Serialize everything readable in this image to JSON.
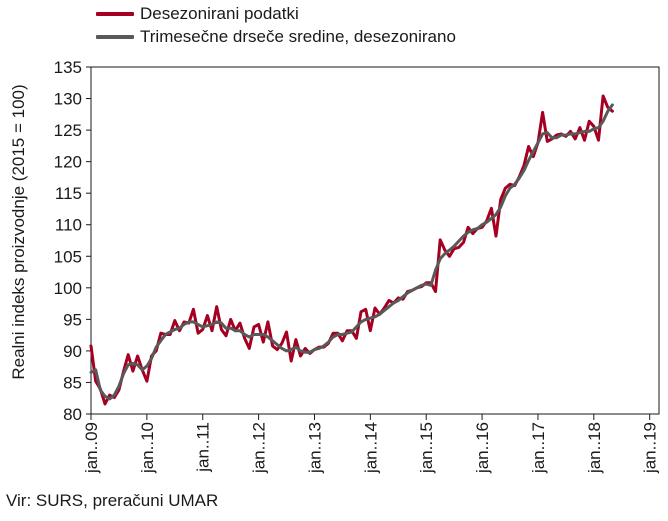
{
  "chart_data": {
    "type": "line",
    "title": "",
    "xlabel": "",
    "ylabel": "Realni indeks proizvodnje (2015 = 100)",
    "ylim": [
      80,
      135
    ],
    "yticks": [
      80,
      85,
      90,
      95,
      100,
      105,
      110,
      115,
      120,
      125,
      130,
      135
    ],
    "xlim": [
      "2009-01",
      "2019-03"
    ],
    "x_tick_labels": [
      "jan..09",
      "jan..10",
      "jan..11",
      "jan..12",
      "jan..13",
      "jan..14",
      "jan..15",
      "jan..16",
      "jan..17",
      "jan..18",
      "jan..19"
    ],
    "grid": false,
    "legend_position": "top-left",
    "series": [
      {
        "name": "Desezonirani podatki",
        "color": "#a50021",
        "x_start": "2009-01",
        "frequency": "monthly",
        "values": [
          90.8,
          85.2,
          84.0,
          81.6,
          83.0,
          82.6,
          83.8,
          86.8,
          89.4,
          86.8,
          89.2,
          87.0,
          85.2,
          89.2,
          90.0,
          92.8,
          92.6,
          92.6,
          94.8,
          93.2,
          94.6,
          94.4,
          96.6,
          92.8,
          93.4,
          95.6,
          93.2,
          97.0,
          93.4,
          92.4,
          95.0,
          93.2,
          94.4,
          92.0,
          90.4,
          93.8,
          94.2,
          91.4,
          94.6,
          90.8,
          90.2,
          91.2,
          93.0,
          88.4,
          91.8,
          89.2,
          90.4,
          89.6,
          90.2,
          90.6,
          90.6,
          91.2,
          92.8,
          92.8,
          91.6,
          93.2,
          93.2,
          92.0,
          96.2,
          96.6,
          93.2,
          96.8,
          95.8,
          96.8,
          98.0,
          97.6,
          98.4,
          98.2,
          99.4,
          99.6,
          100.0,
          100.2,
          100.8,
          100.8,
          99.4,
          107.6,
          106.0,
          105.0,
          106.2,
          106.4,
          107.2,
          109.6,
          108.6,
          109.4,
          109.6,
          110.6,
          112.6,
          108.2,
          114.0,
          115.8,
          116.4,
          116.2,
          117.6,
          119.4,
          122.4,
          120.8,
          123.0,
          127.8,
          123.2,
          123.6,
          124.2,
          124.4,
          124.0,
          124.8,
          123.6,
          125.4,
          123.4,
          126.4,
          125.6,
          123.4,
          130.4,
          128.6,
          128.0
        ]
      },
      {
        "name": "Trimesečne drseče sredine, desezonirano",
        "color": "#595959",
        "x_start": "2009-01",
        "frequency": "monthly",
        "values": [
          86.6,
          87.0,
          83.8,
          82.8,
          82.4,
          83.0,
          84.4,
          86.4,
          87.8,
          88.0,
          87.8,
          87.0,
          87.6,
          88.8,
          90.6,
          91.6,
          92.6,
          93.0,
          93.4,
          93.6,
          94.2,
          94.6,
          94.6,
          94.2,
          93.8,
          94.0,
          94.2,
          94.6,
          94.4,
          93.6,
          93.6,
          93.2,
          93.2,
          92.6,
          92.2,
          92.6,
          92.6,
          92.6,
          92.2,
          91.6,
          91.0,
          90.4,
          90.0,
          90.2,
          90.6,
          90.0,
          89.8,
          89.8,
          90.2,
          90.4,
          90.8,
          91.4,
          92.2,
          92.6,
          92.6,
          92.8,
          93.0,
          93.8,
          94.6,
          95.0,
          95.2,
          95.4,
          95.8,
          96.4,
          97.0,
          97.6,
          98.0,
          98.6,
          99.2,
          99.6,
          100.0,
          100.4,
          100.6,
          100.4,
          102.8,
          104.6,
          105.4,
          106.0,
          106.6,
          107.4,
          108.2,
          108.8,
          109.2,
          109.4,
          110.0,
          110.4,
          111.0,
          111.6,
          112.8,
          114.6,
          115.8,
          116.4,
          117.4,
          118.6,
          120.2,
          121.6,
          123.0,
          124.4,
          124.6,
          123.8,
          123.8,
          124.2,
          124.2,
          124.4,
          124.4,
          124.6,
          124.8,
          124.8,
          125.2,
          125.4,
          126.4,
          128.0,
          129.0
        ]
      }
    ]
  },
  "footer": {
    "source": "Vir: SURS, preračuni UMAR"
  }
}
